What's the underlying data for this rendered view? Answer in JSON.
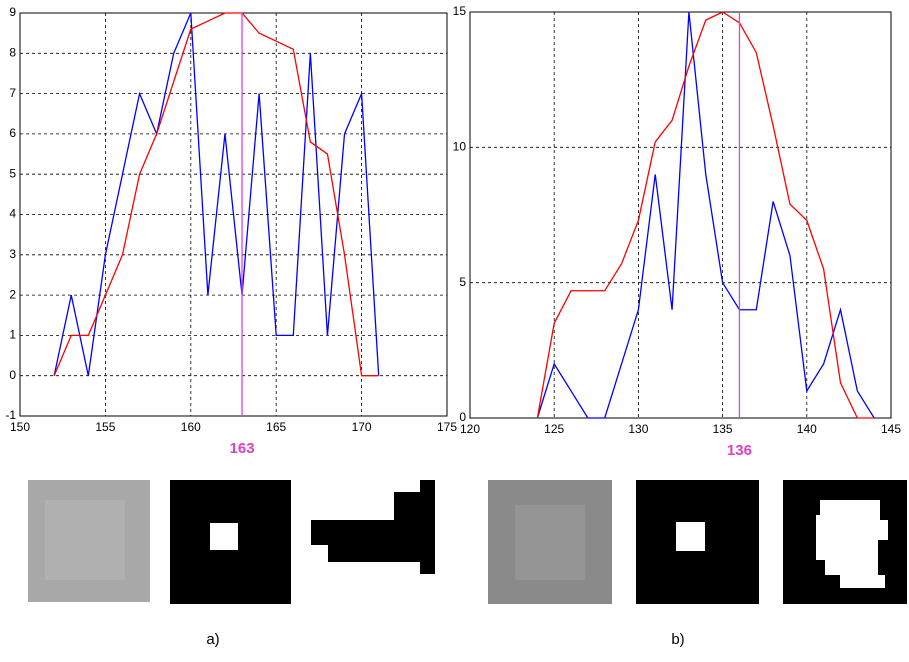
{
  "chart_data": [
    {
      "type": "line",
      "x": [
        152,
        153,
        154,
        155,
        156,
        157,
        158,
        159,
        160,
        161,
        162,
        163,
        164,
        165,
        166,
        167,
        168,
        169,
        170,
        171
      ],
      "series": [
        {
          "color": "#0000ff",
          "values": [
            0,
            2,
            0,
            3,
            5,
            7,
            6,
            8,
            9,
            2,
            6,
            2,
            7,
            1,
            1,
            8,
            1,
            6,
            7,
            0
          ]
        },
        {
          "color": "#ff0000",
          "values": [
            0,
            1,
            1,
            2,
            3,
            5,
            6,
            7.3,
            8.6,
            8.8,
            9,
            9,
            8.5,
            8.3,
            8.1,
            5.8,
            5.5,
            3,
            0,
            0
          ]
        }
      ],
      "marker": 163,
      "marker_color": "#e040e0",
      "marker_label": "163",
      "xlim": [
        150,
        175
      ],
      "xticks": [
        150,
        155,
        160,
        165,
        170,
        175
      ],
      "ylim": [
        -1,
        9
      ],
      "yticks": [
        -1,
        0,
        1,
        2,
        3,
        4,
        5,
        6,
        7,
        8,
        9
      ],
      "grid": true,
      "caption": "a)"
    },
    {
      "type": "line",
      "x": [
        124,
        125,
        126,
        127,
        128,
        129,
        130,
        131,
        132,
        133,
        134,
        135,
        136,
        137,
        138,
        139,
        140,
        141,
        142,
        143,
        144
      ],
      "series": [
        {
          "color": "#0000ff",
          "values": [
            0,
            2,
            1,
            0,
            0,
            2,
            4,
            9,
            4,
            15,
            9,
            5,
            4,
            4,
            8,
            6,
            1,
            2,
            4,
            1,
            0
          ]
        },
        {
          "color": "#ff0000",
          "values": [
            0,
            3.5,
            4.7,
            4.7,
            4.7,
            5.7,
            7.3,
            10.2,
            11,
            13,
            14.7,
            15,
            14.6,
            13.5,
            10.8,
            7.9,
            7.3,
            5.5,
            1.3,
            0,
            0
          ]
        }
      ],
      "marker": 136,
      "marker_color": "#e040e0",
      "marker_label": "136",
      "xlim": [
        120,
        145
      ],
      "xticks": [
        120,
        125,
        130,
        135,
        140,
        145
      ],
      "ylim": [
        0,
        15
      ],
      "yticks": [
        0,
        5,
        10,
        15
      ],
      "grid": true,
      "caption": "b)"
    }
  ]
}
